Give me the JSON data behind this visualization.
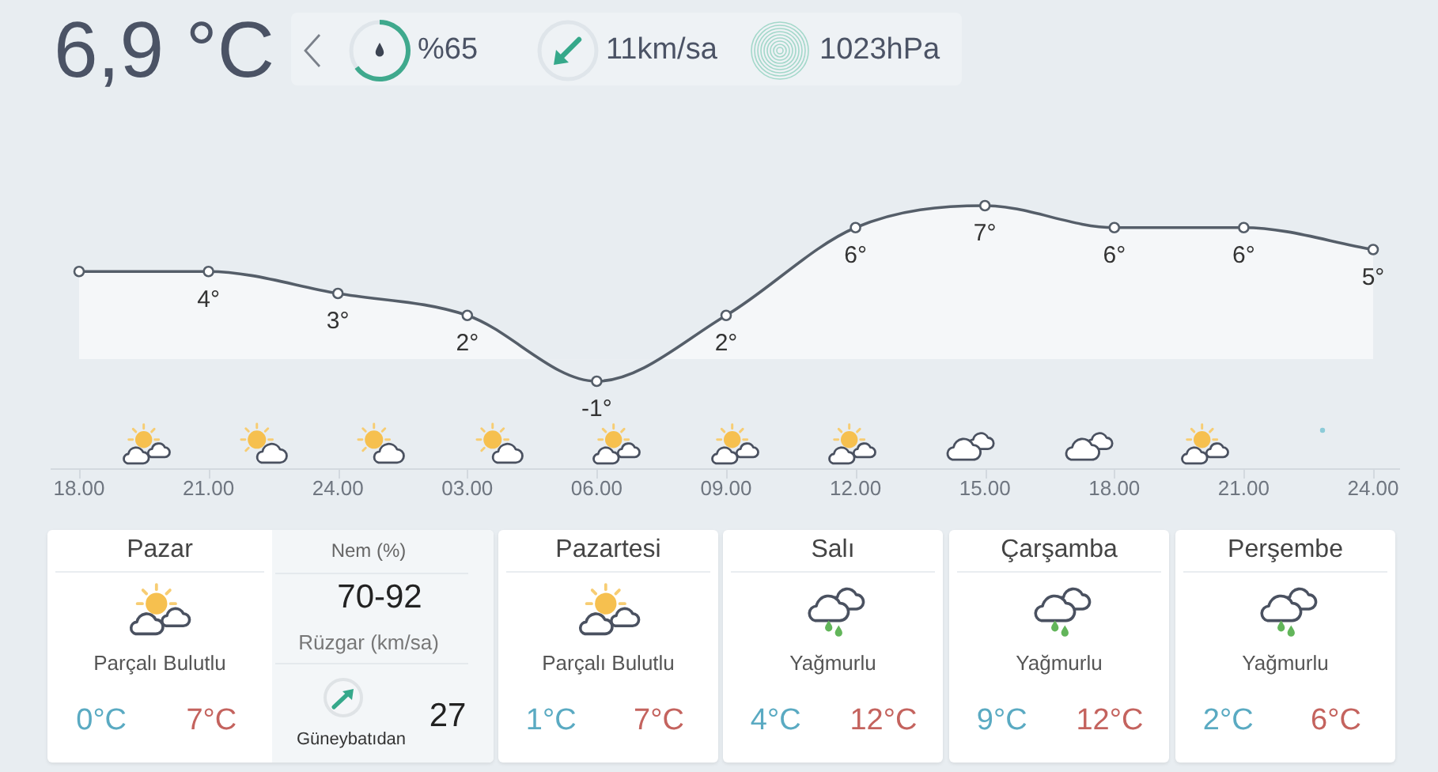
{
  "chart_data": [
    {
      "type": "other",
      "title": "6,9 °C",
      "annotations": [
        "%65",
        "11km/sa",
        "1023hPa"
      ]
    },
    {
      "type": "area",
      "categories": [
        "18.00",
        "21.00",
        "24.00",
        "03.00",
        "06.00",
        "09.00",
        "12.00",
        "15.00",
        "18.00",
        "21.00",
        "24.00"
      ],
      "values": [
        4,
        4,
        3,
        2,
        -1,
        2,
        6,
        7,
        6,
        6,
        5
      ],
      "value_labels": [
        null,
        "4°",
        "3°",
        "2°",
        "-1°",
        "2°",
        "6°",
        "7°",
        "6°",
        "6°",
        "5°"
      ],
      "color": "#555e69",
      "marker": "circle",
      "tick_labels": "x"
    },
    {
      "type": "other",
      "annotations": [
        "Pazar",
        "Parçalı Bulutlu",
        "0°C",
        "7°C",
        "Nem (%)",
        "70-92",
        "Rüzgar (km/sa)",
        "27",
        "Güneybatıdan",
        "Pazartesi",
        "Parçalı Bulutlu",
        "1°C",
        "7°C",
        "Salı",
        "Yağmurlu",
        "4°C",
        "12°C",
        "Çarşamba",
        "Yağmurlu",
        "9°C",
        "12°C",
        "Perşembe",
        "Yağmurlu",
        "2°C",
        "6°C"
      ]
    }
  ]
}
